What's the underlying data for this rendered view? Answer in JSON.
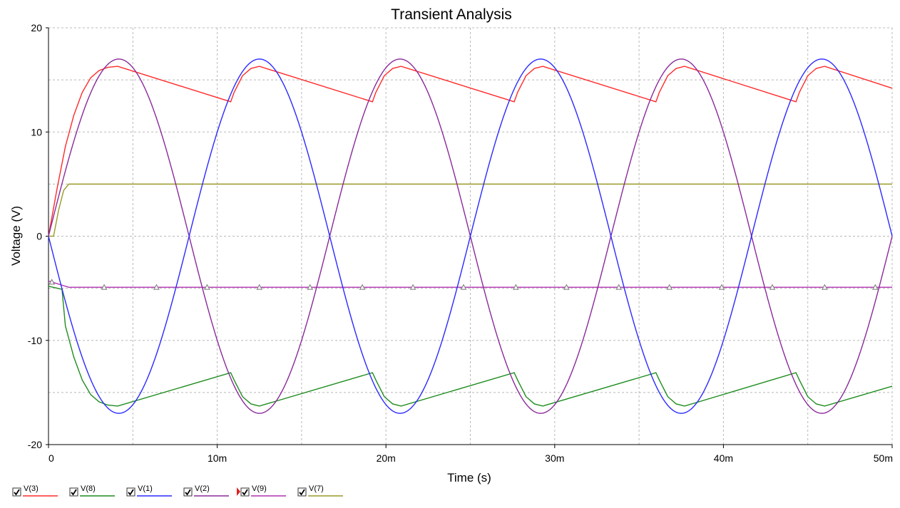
{
  "chart_data": {
    "type": "line",
    "title": "Transient Analysis",
    "xlabel": "Time (s)",
    "ylabel": "Voltage (V)",
    "xlim": [
      0,
      0.05
    ],
    "ylim": [
      -20,
      20
    ],
    "grid": true,
    "legend_position": "bottom-left",
    "x_ticks": [
      {
        "value": 0,
        "label": "0"
      },
      {
        "value": 0.01,
        "label": "10m"
      },
      {
        "value": 0.02,
        "label": "20m"
      },
      {
        "value": 0.03,
        "label": "30m"
      },
      {
        "value": 0.04,
        "label": "40m"
      },
      {
        "value": 0.05,
        "label": "50m"
      }
    ],
    "y_ticks": [
      {
        "value": 20,
        "label": "20"
      },
      {
        "value": 10,
        "label": "10"
      },
      {
        "value": 0,
        "label": "0"
      },
      {
        "value": -10,
        "label": "-10"
      },
      {
        "value": -20,
        "label": "-20"
      }
    ],
    "series": [
      {
        "name": "V(3)",
        "color": "#ff2a2a",
        "checked": true,
        "x": [
          0,
          0.0005,
          0.001,
          0.0015,
          0.002,
          0.0025,
          0.003,
          0.0035,
          0.0041,
          0.0108,
          0.011,
          0.0115,
          0.012,
          0.0125,
          0.0192,
          0.0194,
          0.0199,
          0.0204,
          0.0209,
          0.0276,
          0.0278,
          0.0283,
          0.0288,
          0.0293,
          0.036,
          0.0362,
          0.0367,
          0.0372,
          0.0377,
          0.0443,
          0.0445,
          0.045,
          0.0455,
          0.046,
          0.05
        ],
        "y": [
          0,
          4.5,
          8.6,
          11.6,
          13.8,
          15.2,
          15.9,
          16.2,
          16.3,
          12.9,
          13.8,
          15.4,
          16.1,
          16.3,
          12.9,
          13.8,
          15.4,
          16.1,
          16.3,
          12.9,
          13.8,
          15.4,
          16.1,
          16.3,
          12.9,
          13.8,
          15.4,
          16.1,
          16.3,
          12.9,
          13.8,
          15.4,
          16.1,
          16.3,
          14.2
        ]
      },
      {
        "name": "V(8)",
        "color": "#1e8c1e",
        "checked": true,
        "x": [
          0,
          0.0008,
          0.001,
          0.0015,
          0.002,
          0.0025,
          0.003,
          0.0035,
          0.0041,
          0.0108,
          0.011,
          0.0115,
          0.012,
          0.0125,
          0.0192,
          0.0194,
          0.0199,
          0.0204,
          0.0209,
          0.0276,
          0.0278,
          0.0283,
          0.0288,
          0.0293,
          0.036,
          0.0362,
          0.0367,
          0.0372,
          0.0377,
          0.0443,
          0.0445,
          0.045,
          0.0455,
          0.046,
          0.05
        ],
        "y": [
          -4.8,
          -5.1,
          -8.6,
          -11.6,
          -13.8,
          -15.2,
          -15.9,
          -16.2,
          -16.3,
          -13.1,
          -13.8,
          -15.4,
          -16.1,
          -16.3,
          -13.1,
          -13.8,
          -15.4,
          -16.1,
          -16.3,
          -13.1,
          -13.8,
          -15.4,
          -16.1,
          -16.3,
          -13.1,
          -13.8,
          -15.4,
          -16.1,
          -16.3,
          -13.1,
          -13.8,
          -15.4,
          -16.1,
          -16.3,
          -14.4
        ]
      },
      {
        "name": "V(1)",
        "color": "#2a2aff",
        "checked": true,
        "wave": {
          "kind": "sine",
          "amplitude": -17,
          "period": 0.016667,
          "offset": 0
        }
      },
      {
        "name": "V(2)",
        "color": "#8a2a9a",
        "checked": true,
        "wave": {
          "kind": "sine",
          "amplitude": 17,
          "period": 0.016667,
          "offset": 0
        }
      },
      {
        "name": "V(9)",
        "color": "#b030b0",
        "checked": true,
        "marker": "triangle",
        "x": [
          0,
          0.0002,
          0.0008,
          0.0012,
          0.05
        ],
        "y": [
          -4.3,
          -4.4,
          -4.7,
          -4.9,
          -4.9
        ],
        "marker_x": [
          0.0002,
          0.0033,
          0.0064,
          0.0094,
          0.0125,
          0.0155,
          0.0186,
          0.0216,
          0.0246,
          0.0277,
          0.0307,
          0.0338,
          0.0368,
          0.0399,
          0.0429,
          0.046,
          0.049
        ]
      },
      {
        "name": "V(7)",
        "color": "#9a9a28",
        "checked": true,
        "x": [
          0,
          0.0003,
          0.0006,
          0.0009,
          0.0012,
          0.05
        ],
        "y": [
          0,
          0,
          2.5,
          4.4,
          5,
          5
        ]
      }
    ]
  }
}
